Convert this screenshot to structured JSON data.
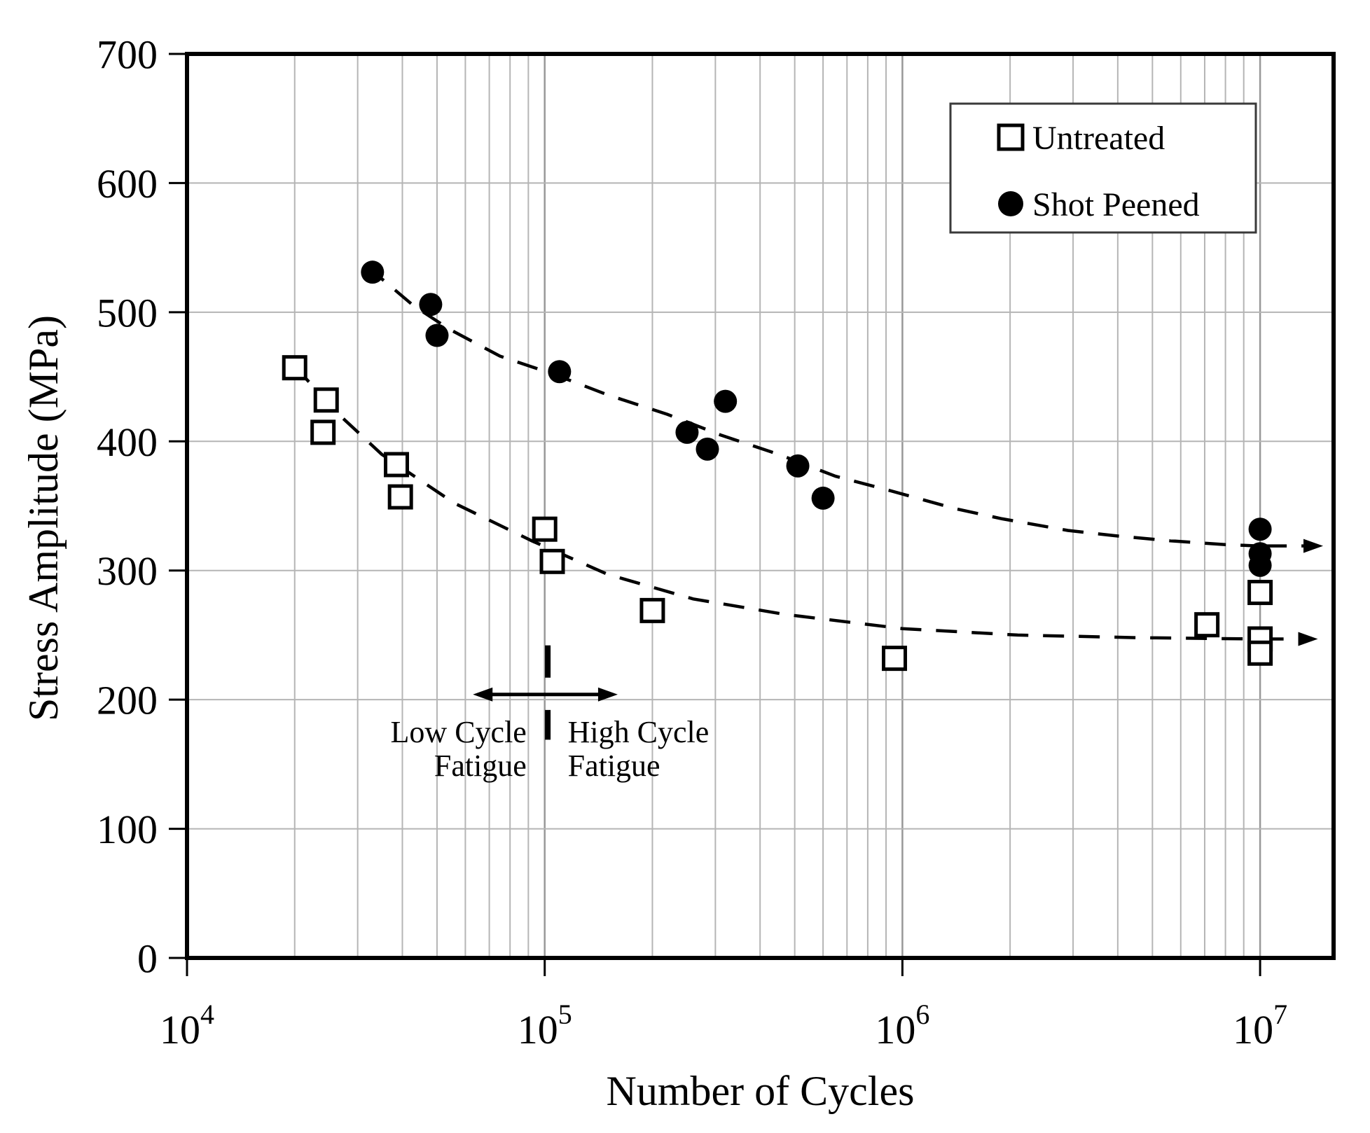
{
  "figure": {
    "colors": {
      "background": "#ffffff",
      "axis": "#000000",
      "grid_minor": "#b5b5b5",
      "grid_major": "#989898",
      "marker": "#000000",
      "legend_border": "#3a3a3a"
    },
    "x_axis": {
      "label": "Number of Cycles",
      "scale": "log",
      "min": 10000,
      "max": 16000000,
      "tick_exponents": [
        4,
        5,
        6,
        7
      ],
      "tick_base": "10",
      "minor_multiples": [
        2,
        3,
        4,
        5,
        6,
        7,
        8,
        9
      ]
    },
    "y_axis": {
      "label": "Stress Amplitude (MPa)",
      "min": 0,
      "max": 700,
      "step": 100,
      "tick_labels": [
        "0",
        "100",
        "200",
        "300",
        "400",
        "500",
        "600",
        "700"
      ]
    },
    "legend": {
      "position": "top-right",
      "items": [
        {
          "label": "Untreated",
          "marker": "open-square"
        },
        {
          "label": "Shot Peened",
          "marker": "filled-circle"
        }
      ]
    }
  },
  "chart_data": {
    "type": "scatter",
    "title": "",
    "xlabel": "Number of Cycles",
    "ylabel": "Stress Amplitude (MPa)",
    "x_scale": "log",
    "xlim": [
      10000,
      16000000
    ],
    "ylim": [
      0,
      700
    ],
    "grid": true,
    "legend_position": "top-right",
    "series": [
      {
        "name": "Untreated",
        "marker": "open-square",
        "points": [
          [
            20000,
            457
          ],
          [
            24500,
            432
          ],
          [
            24000,
            407
          ],
          [
            38500,
            382
          ],
          [
            39500,
            357
          ],
          [
            100000,
            332
          ],
          [
            105000,
            307
          ],
          [
            200000,
            269
          ],
          [
            950000,
            232
          ],
          [
            7100000,
            258
          ],
          [
            10000000,
            283
          ],
          [
            10000000,
            247
          ],
          [
            10000000,
            236
          ]
        ]
      },
      {
        "name": "Shot Peened",
        "marker": "filled-circle",
        "points": [
          [
            33000,
            531
          ],
          [
            48000,
            506
          ],
          [
            50000,
            482
          ],
          [
            110000,
            454
          ],
          [
            250000,
            407
          ],
          [
            285000,
            394
          ],
          [
            320000,
            431
          ],
          [
            510000,
            381
          ],
          [
            600000,
            356
          ],
          [
            10000000,
            332
          ],
          [
            10000000,
            313
          ],
          [
            10000000,
            304
          ]
        ]
      }
    ],
    "trend_lines": [
      {
        "series": "Untreated",
        "style": "dashed",
        "points": [
          [
            20000,
            458
          ],
          [
            27000,
            419
          ],
          [
            35000,
            390
          ],
          [
            56000,
            352
          ],
          [
            92000,
            323
          ],
          [
            150000,
            297
          ],
          [
            260000,
            278
          ],
          [
            470000,
            266
          ],
          [
            1000000,
            255
          ],
          [
            2100000,
            250
          ],
          [
            4500000,
            248
          ],
          [
            9800000,
            247
          ]
        ],
        "arrow_to": 14500000
      },
      {
        "series": "Shot Peened",
        "style": "dashed",
        "points": [
          [
            32000,
            535
          ],
          [
            43000,
            505
          ],
          [
            54000,
            487
          ],
          [
            75000,
            466
          ],
          [
            106000,
            452
          ],
          [
            150000,
            436
          ],
          [
            220000,
            421
          ],
          [
            310000,
            405
          ],
          [
            450000,
            390
          ],
          [
            650000,
            373
          ],
          [
            920000,
            362
          ],
          [
            1400000,
            348
          ],
          [
            1900000,
            340
          ],
          [
            2900000,
            331
          ],
          [
            3900000,
            327
          ],
          [
            5600000,
            323
          ],
          [
            8000000,
            320
          ],
          [
            10000000,
            319
          ]
        ],
        "arrow_to": 15000000
      }
    ],
    "annotations": {
      "regime_boundary": {
        "x": 102000,
        "dash_segments_mpa": [
          [
            217,
            242
          ],
          [
            169,
            192
          ]
        ]
      },
      "regime_arrow": {
        "mpa": 204,
        "from_x": 63000,
        "to_x": 160000
      },
      "low_cycle": {
        "lines": [
          "Low Cycle",
          "Fatigue"
        ],
        "align": "right",
        "anchor_x": 89000,
        "mpa_baselines": [
          167,
          141
        ]
      },
      "high_cycle": {
        "lines": [
          "High Cycle",
          "Fatigue"
        ],
        "align": "left",
        "anchor_x": 116000,
        "mpa_baselines": [
          167,
          141
        ]
      }
    }
  }
}
